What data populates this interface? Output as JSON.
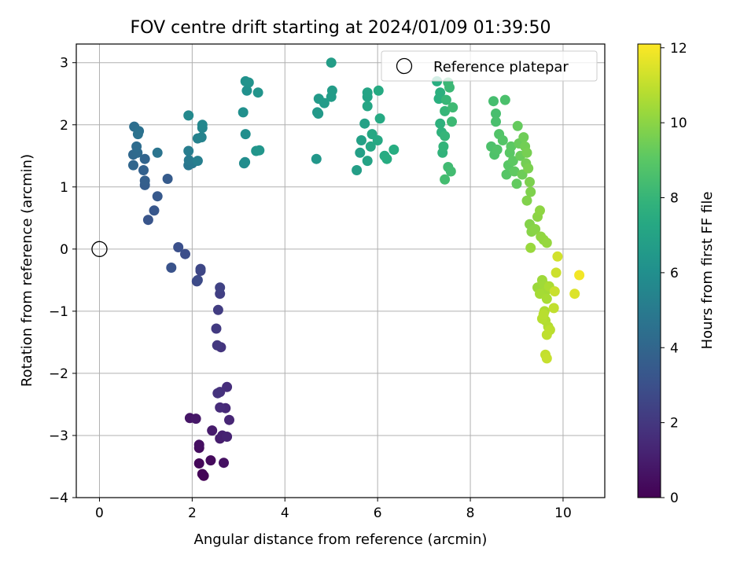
{
  "chart_data": {
    "type": "scatter",
    "title": "FOV centre drift starting at 2024/01/09 01:39:50",
    "xlabel": "Angular distance from reference (arcmin)",
    "ylabel": "Rotation from reference (arcmin)",
    "xlim": [
      -0.5,
      10.9
    ],
    "ylim": [
      -4,
      3.3
    ],
    "xticks": [
      0,
      2,
      4,
      6,
      8,
      10
    ],
    "yticks": [
      -4,
      -3,
      -2,
      -1,
      0,
      1,
      2,
      3
    ],
    "xtick_labels": [
      "0",
      "2",
      "4",
      "6",
      "8",
      "10"
    ],
    "ytick_labels": [
      "−4",
      "−3",
      "−2",
      "−1",
      "0",
      "1",
      "2",
      "3"
    ],
    "grid": true,
    "legend": {
      "position": "top-right",
      "entries": [
        "Reference platepar"
      ]
    },
    "reference_point": {
      "name": "Reference platepar",
      "x": 0,
      "y": 0
    },
    "colorbar": {
      "label": "Hours from first FF file",
      "colormap": "viridis",
      "range": [
        0,
        12.1
      ],
      "ticks": [
        0,
        2,
        4,
        6,
        8,
        10,
        12
      ],
      "tick_labels": [
        "0",
        "2",
        "4",
        "6",
        "8",
        "10",
        "12"
      ]
    },
    "points_x_y_hours": [
      [
        2.25,
        -3.65,
        0.05
      ],
      [
        2.22,
        -3.62,
        0.1
      ],
      [
        2.15,
        -3.45,
        0.2
      ],
      [
        2.4,
        -3.4,
        0.3
      ],
      [
        2.15,
        -3.2,
        0.4
      ],
      [
        2.15,
        -3.15,
        0.5
      ],
      [
        2.68,
        -3.44,
        0.55
      ],
      [
        1.95,
        -2.72,
        0.7
      ],
      [
        2.08,
        -2.73,
        0.8
      ],
      [
        2.43,
        -2.92,
        0.9
      ],
      [
        2.6,
        -3.05,
        1.0
      ],
      [
        2.65,
        -3.0,
        1.1
      ],
      [
        2.75,
        -3.02,
        1.2
      ],
      [
        2.8,
        -2.75,
        1.3
      ],
      [
        2.72,
        -2.56,
        1.4
      ],
      [
        2.6,
        -2.55,
        1.5
      ],
      [
        2.75,
        -2.22,
        1.6
      ],
      [
        2.6,
        -2.3,
        1.7
      ],
      [
        2.55,
        -2.32,
        1.8
      ],
      [
        2.62,
        -1.58,
        1.9
      ],
      [
        2.54,
        -1.55,
        2.0
      ],
      [
        2.52,
        -1.28,
        2.1
      ],
      [
        2.56,
        -0.98,
        2.2
      ],
      [
        2.6,
        -0.72,
        2.3
      ],
      [
        2.6,
        -0.62,
        2.4
      ],
      [
        2.18,
        -0.35,
        2.5
      ],
      [
        2.18,
        -0.32,
        2.6
      ],
      [
        2.1,
        -0.52,
        2.7
      ],
      [
        2.12,
        -0.5,
        2.8
      ],
      [
        1.85,
        -0.08,
        2.9
      ],
      [
        1.7,
        0.03,
        3.0
      ],
      [
        1.55,
        -0.3,
        3.1
      ],
      [
        1.05,
        0.47,
        3.2
      ],
      [
        1.18,
        0.62,
        3.3
      ],
      [
        1.25,
        0.85,
        3.4
      ],
      [
        1.47,
        1.13,
        3.5
      ],
      [
        0.98,
        1.03,
        3.6
      ],
      [
        0.98,
        1.1,
        3.7
      ],
      [
        0.95,
        1.27,
        3.8
      ],
      [
        0.98,
        1.45,
        3.9
      ],
      [
        0.73,
        1.35,
        4.0
      ],
      [
        0.73,
        1.52,
        4.1
      ],
      [
        0.82,
        1.55,
        4.2
      ],
      [
        0.8,
        1.65,
        4.3
      ],
      [
        0.75,
        1.97,
        4.4
      ],
      [
        0.85,
        1.9,
        4.5
      ],
      [
        0.83,
        1.85,
        4.6
      ],
      [
        1.25,
        1.55,
        4.7
      ],
      [
        1.92,
        1.35,
        4.8
      ],
      [
        2.0,
        1.38,
        4.9
      ],
      [
        1.93,
        1.43,
        5.0
      ],
      [
        1.92,
        1.58,
        5.1
      ],
      [
        2.12,
        1.42,
        5.2
      ],
      [
        2.12,
        1.78,
        5.3
      ],
      [
        2.2,
        1.8,
        5.4
      ],
      [
        2.22,
        1.95,
        5.5
      ],
      [
        2.22,
        2.0,
        5.6
      ],
      [
        1.92,
        2.15,
        5.7
      ],
      [
        3.12,
        1.38,
        5.8
      ],
      [
        3.14,
        1.4,
        5.9
      ],
      [
        3.15,
        1.85,
        6.0
      ],
      [
        3.1,
        2.2,
        6.05
      ],
      [
        3.18,
        2.55,
        6.1
      ],
      [
        3.15,
        2.7,
        6.15
      ],
      [
        3.22,
        2.68,
        6.2
      ],
      [
        3.42,
        2.52,
        6.25
      ],
      [
        3.38,
        1.58,
        6.3
      ],
      [
        3.45,
        1.59,
        6.35
      ],
      [
        4.68,
        1.45,
        6.4
      ],
      [
        4.7,
        2.2,
        6.45
      ],
      [
        4.72,
        2.18,
        6.5
      ],
      [
        4.73,
        2.42,
        6.55
      ],
      [
        4.85,
        2.35,
        6.6
      ],
      [
        5.0,
        2.45,
        6.65
      ],
      [
        5.02,
        2.55,
        6.7
      ],
      [
        5.0,
        3.0,
        6.75
      ],
      [
        5.55,
        1.27,
        6.8
      ],
      [
        5.62,
        1.55,
        6.85
      ],
      [
        5.65,
        1.75,
        6.9
      ],
      [
        5.72,
        2.02,
        6.95
      ],
      [
        5.78,
        1.42,
        7.0
      ],
      [
        5.78,
        2.45,
        7.05
      ],
      [
        5.78,
        2.52,
        7.1
      ],
      [
        5.78,
        2.3,
        7.15
      ],
      [
        5.85,
        1.65,
        7.2
      ],
      [
        5.88,
        1.85,
        7.25
      ],
      [
        6.0,
        1.75,
        7.3
      ],
      [
        6.05,
        2.1,
        7.35
      ],
      [
        6.02,
        2.55,
        7.4
      ],
      [
        6.15,
        1.5,
        7.45
      ],
      [
        6.2,
        1.45,
        7.5
      ],
      [
        6.35,
        1.6,
        7.55
      ],
      [
        7.28,
        2.7,
        7.6
      ],
      [
        7.32,
        2.42,
        7.65
      ],
      [
        7.35,
        2.52,
        7.7
      ],
      [
        7.35,
        2.02,
        7.75
      ],
      [
        7.38,
        1.88,
        7.8
      ],
      [
        7.4,
        1.55,
        7.85
      ],
      [
        7.42,
        1.65,
        7.9
      ],
      [
        7.45,
        1.82,
        7.95
      ],
      [
        7.45,
        2.22,
        8.0
      ],
      [
        7.48,
        2.4,
        8.05
      ],
      [
        7.52,
        2.68,
        8.1
      ],
      [
        7.55,
        2.6,
        8.15
      ],
      [
        7.6,
        2.05,
        8.2
      ],
      [
        7.62,
        2.28,
        8.25
      ],
      [
        7.52,
        1.32,
        8.3
      ],
      [
        7.58,
        1.25,
        8.35
      ],
      [
        7.45,
        1.12,
        8.4
      ],
      [
        8.5,
        2.38,
        8.45
      ],
      [
        8.55,
        2.18,
        8.5
      ],
      [
        8.55,
        2.05,
        8.55
      ],
      [
        8.75,
        2.4,
        8.6
      ],
      [
        8.45,
        1.65,
        8.65
      ],
      [
        8.52,
        1.52,
        8.7
      ],
      [
        8.58,
        1.6,
        8.75
      ],
      [
        8.62,
        1.85,
        8.8
      ],
      [
        8.7,
        1.75,
        8.85
      ],
      [
        8.78,
        1.2,
        8.9
      ],
      [
        8.82,
        1.35,
        8.95
      ],
      [
        8.85,
        1.55,
        9.0
      ],
      [
        8.88,
        1.65,
        9.05
      ],
      [
        8.92,
        1.42,
        9.1
      ],
      [
        8.95,
        1.25,
        9.15
      ],
      [
        9.0,
        1.05,
        9.2
      ],
      [
        9.02,
        1.98,
        9.25
      ],
      [
        9.05,
        1.7,
        9.3
      ],
      [
        9.08,
        1.5,
        9.35
      ],
      [
        9.12,
        1.2,
        9.4
      ],
      [
        9.15,
        1.8,
        9.45
      ],
      [
        9.18,
        1.65,
        9.5
      ],
      [
        9.2,
        1.38,
        9.55
      ],
      [
        9.22,
        1.55,
        9.6
      ],
      [
        9.25,
        1.3,
        9.65
      ],
      [
        9.28,
        1.08,
        9.7
      ],
      [
        9.3,
        0.92,
        9.75
      ],
      [
        9.22,
        0.78,
        9.8
      ],
      [
        9.28,
        0.4,
        9.85
      ],
      [
        9.32,
        0.28,
        9.9
      ],
      [
        9.4,
        0.32,
        9.95
      ],
      [
        9.45,
        0.52,
        10.0
      ],
      [
        9.5,
        0.62,
        10.05
      ],
      [
        9.52,
        0.2,
        10.1
      ],
      [
        9.58,
        0.15,
        10.15
      ],
      [
        9.65,
        0.1,
        10.2
      ],
      [
        9.3,
        0.02,
        10.25
      ],
      [
        9.45,
        -0.62,
        10.3
      ],
      [
        9.55,
        -0.5,
        10.35
      ],
      [
        9.6,
        -0.58,
        10.4
      ],
      [
        9.62,
        -0.68,
        10.45
      ],
      [
        9.5,
        -0.72,
        10.5
      ],
      [
        9.65,
        -0.8,
        10.55
      ],
      [
        9.7,
        -0.6,
        10.6
      ],
      [
        9.6,
        -1.0,
        10.65
      ],
      [
        9.62,
        -1.15,
        10.7
      ],
      [
        9.68,
        -1.25,
        10.75
      ],
      [
        9.55,
        -1.12,
        10.8
      ],
      [
        9.58,
        -1.05,
        10.85
      ],
      [
        9.72,
        -1.3,
        10.9
      ],
      [
        9.65,
        -1.38,
        10.95
      ],
      [
        9.8,
        -0.95,
        11.0
      ],
      [
        9.62,
        -1.7,
        11.05
      ],
      [
        9.65,
        -1.76,
        11.1
      ],
      [
        9.82,
        -0.68,
        11.15
      ],
      [
        9.85,
        -0.38,
        11.2
      ],
      [
        9.88,
        -0.12,
        11.3
      ],
      [
        10.25,
        -0.72,
        11.5
      ],
      [
        10.35,
        -0.42,
        11.9
      ]
    ]
  }
}
